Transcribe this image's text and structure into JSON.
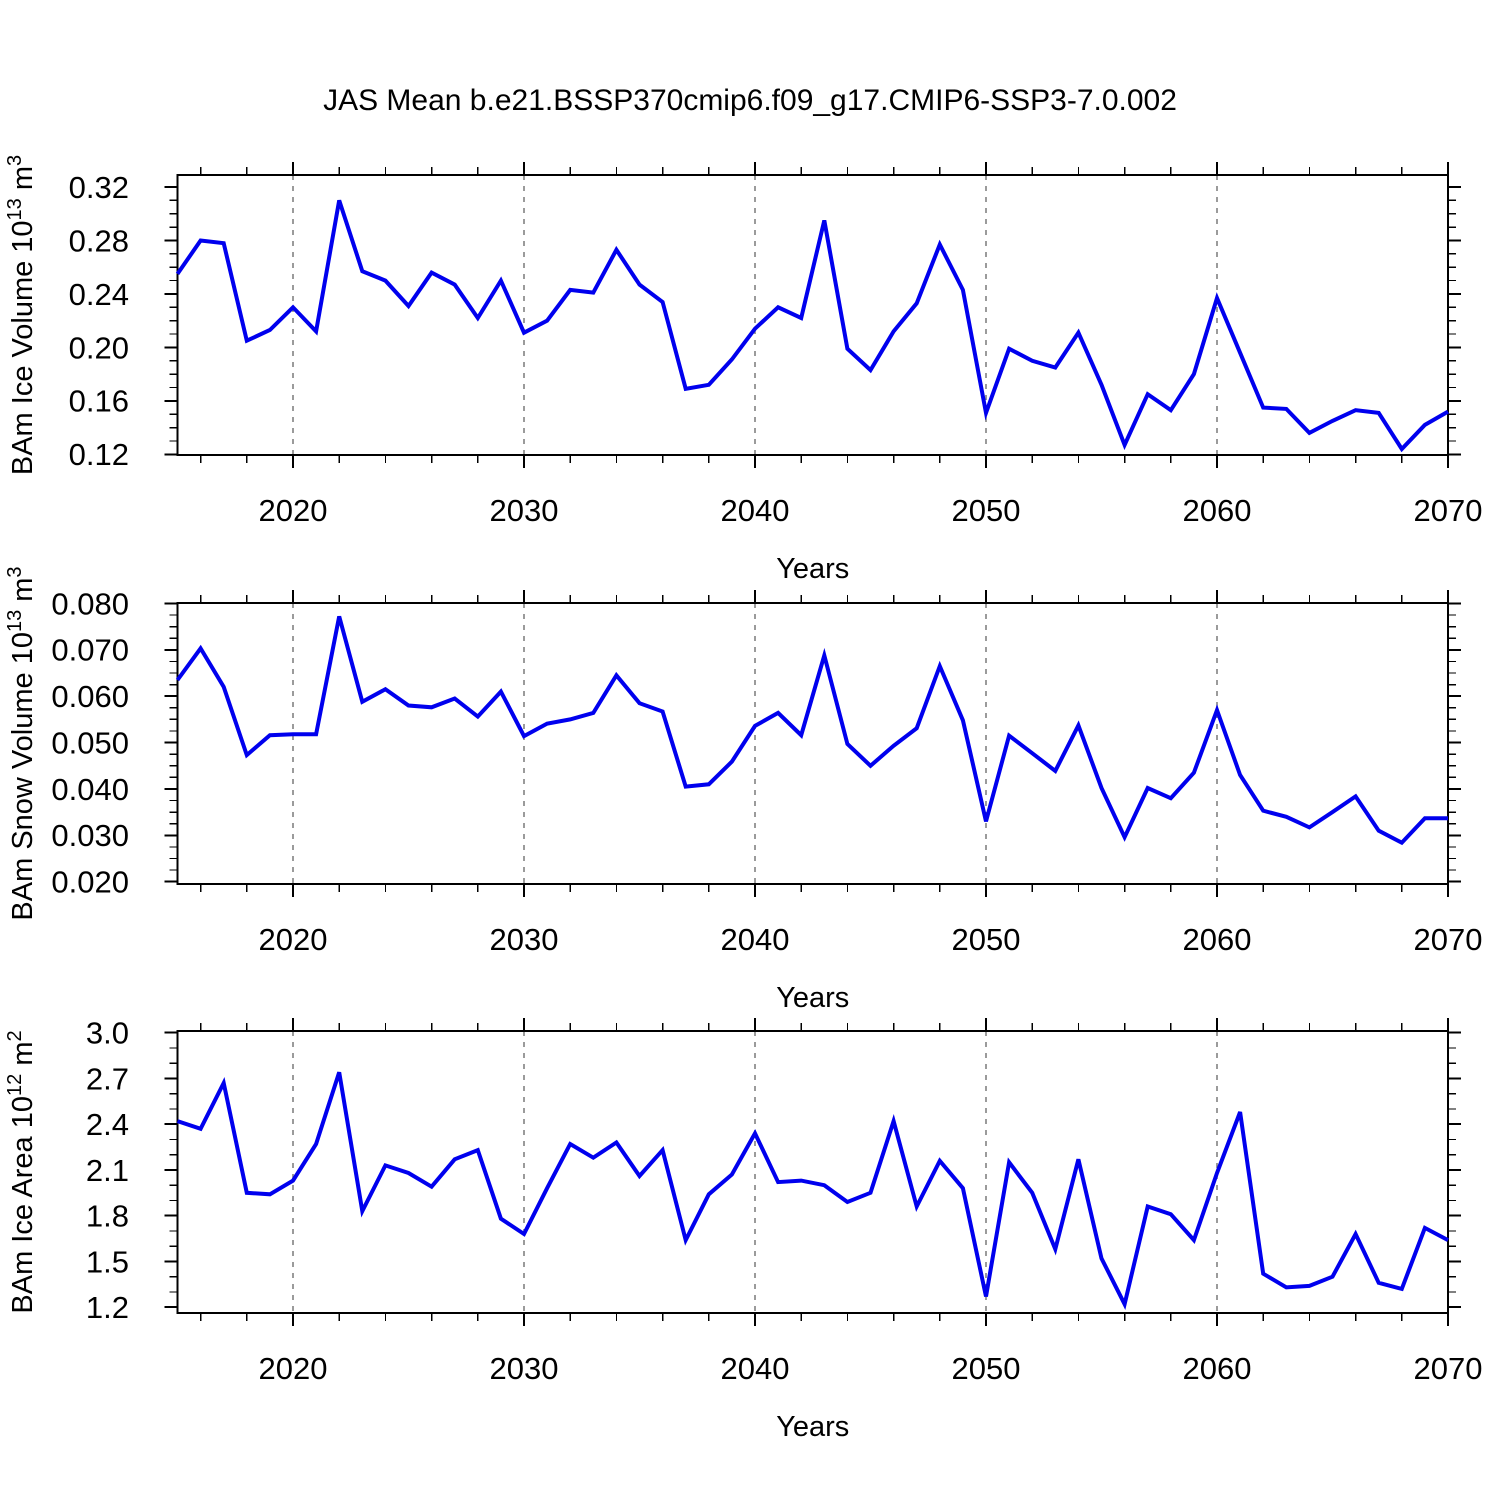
{
  "title": "JAS Mean b.e21.BSSP370cmip6.f09_g17.CMIP6-SSP3-7.0.002",
  "chart_data": {
    "type": "line",
    "suptitle": "JAS Mean b.e21.BSSP370cmip6.f09_g17.CMIP6-SSP3-7.0.002",
    "xlabel": "Years",
    "xlim": [
      2015,
      2070
    ],
    "xticks": [
      2020,
      2030,
      2040,
      2050,
      2060,
      2070
    ],
    "xtick_labels": [
      "2020",
      "2030",
      "2040",
      "2050",
      "2060",
      "2070"
    ],
    "x_minor_step": 2,
    "grid": "vertical dashed lines at decade major ticks",
    "line_color": "#0000ee",
    "grid_color": "#7a7a7a",
    "axis_color": "#000000",
    "x": [
      2015,
      2016,
      2017,
      2018,
      2019,
      2020,
      2021,
      2022,
      2023,
      2024,
      2025,
      2026,
      2027,
      2028,
      2029,
      2030,
      2031,
      2032,
      2033,
      2034,
      2035,
      2036,
      2037,
      2038,
      2039,
      2040,
      2041,
      2042,
      2043,
      2044,
      2045,
      2046,
      2047,
      2048,
      2049,
      2050,
      2051,
      2052,
      2053,
      2054,
      2055,
      2056,
      2057,
      2058,
      2059,
      2060,
      2061,
      2062,
      2063,
      2064,
      2065,
      2066,
      2067,
      2068,
      2069,
      2070
    ],
    "panels": [
      {
        "name": "ice-volume",
        "ylabel": "BAm Ice Volume 10^13 m^3",
        "ylabel_parts": [
          {
            "t": "BAm Ice Volume 10"
          },
          {
            "s": "13"
          },
          {
            "t": " m"
          },
          {
            "s": "3"
          }
        ],
        "ylim": [
          0.1195,
          0.329
        ],
        "yticks": [
          0.12,
          0.16,
          0.2,
          0.24,
          0.28,
          0.32
        ],
        "ytick_labels": [
          "0.12",
          "0.16",
          "0.20",
          "0.24",
          "0.28",
          "0.32"
        ],
        "y_minor_step": 0.01,
        "values": [
          0.255,
          0.28,
          0.278,
          0.205,
          0.213,
          0.23,
          0.212,
          0.31,
          0.257,
          0.25,
          0.231,
          0.256,
          0.247,
          0.222,
          0.25,
          0.211,
          0.22,
          0.243,
          0.241,
          0.273,
          0.247,
          0.234,
          0.169,
          0.172,
          0.191,
          0.214,
          0.23,
          0.222,
          0.295,
          0.199,
          0.183,
          0.212,
          0.233,
          0.277,
          0.243,
          0.151,
          0.199,
          0.19,
          0.185,
          0.211,
          0.172,
          0.127,
          0.165,
          0.153,
          0.18,
          0.237,
          0.196,
          0.155,
          0.154,
          0.136,
          0.145,
          0.153,
          0.151,
          0.124,
          0.142,
          0.152
        ]
      },
      {
        "name": "snow-volume",
        "ylabel": "BAm Snow Volume 10^13 m^3",
        "ylabel_parts": [
          {
            "t": "BAm Snow Volume 10"
          },
          {
            "s": "13"
          },
          {
            "t": " m"
          },
          {
            "s": "3"
          }
        ],
        "ylim": [
          0.0195,
          0.0801
        ],
        "yticks": [
          0.02,
          0.03,
          0.04,
          0.05,
          0.06,
          0.07,
          0.08
        ],
        "ytick_labels": [
          "0.020",
          "0.030",
          "0.040",
          "0.050",
          "0.060",
          "0.070",
          "0.080"
        ],
        "y_minor_step": 0.0025,
        "values": [
          0.0635,
          0.0703,
          0.062,
          0.0473,
          0.0516,
          0.0518,
          0.0518,
          0.0772,
          0.0588,
          0.0615,
          0.058,
          0.0576,
          0.0595,
          0.0556,
          0.061,
          0.0514,
          0.0541,
          0.055,
          0.0564,
          0.0645,
          0.0585,
          0.0567,
          0.0405,
          0.041,
          0.0459,
          0.0536,
          0.0564,
          0.0516,
          0.0688,
          0.0497,
          0.045,
          0.0493,
          0.0531,
          0.0665,
          0.0548,
          0.033,
          0.0515,
          0.0477,
          0.0439,
          0.0537,
          0.0402,
          0.0296,
          0.0402,
          0.038,
          0.0435,
          0.057,
          0.043,
          0.0353,
          0.034,
          0.0317,
          0.035,
          0.0384,
          0.031,
          0.0284,
          0.0337,
          0.0337
        ]
      },
      {
        "name": "ice-area",
        "ylabel": "BAm Ice Area 10^12 m^2",
        "ylabel_parts": [
          {
            "t": "BAm Ice Area 10"
          },
          {
            "s": "12"
          },
          {
            "t": " m"
          },
          {
            "s": "2"
          }
        ],
        "ylim": [
          1.162,
          3.011
        ],
        "yticks": [
          1.2,
          1.5,
          1.8,
          2.1,
          2.4,
          2.7,
          3.0
        ],
        "ytick_labels": [
          "1.2",
          "1.5",
          "1.8",
          "2.1",
          "2.4",
          "2.7",
          "3.0"
        ],
        "y_minor_step": 0.1,
        "values": [
          2.42,
          2.37,
          2.67,
          1.95,
          1.94,
          2.03,
          2.27,
          2.74,
          1.83,
          2.13,
          2.08,
          1.99,
          2.17,
          2.23,
          1.78,
          1.68,
          1.98,
          2.27,
          2.18,
          2.28,
          2.06,
          2.23,
          1.64,
          1.94,
          2.07,
          2.34,
          2.02,
          2.03,
          2.0,
          1.89,
          1.95,
          2.42,
          1.86,
          2.16,
          1.98,
          1.27,
          2.15,
          1.95,
          1.58,
          2.17,
          1.52,
          1.22,
          1.86,
          1.81,
          1.64,
          2.08,
          2.48,
          1.42,
          1.33,
          1.34,
          1.4,
          1.68,
          1.36,
          1.32,
          1.72,
          1.64
        ]
      }
    ]
  }
}
